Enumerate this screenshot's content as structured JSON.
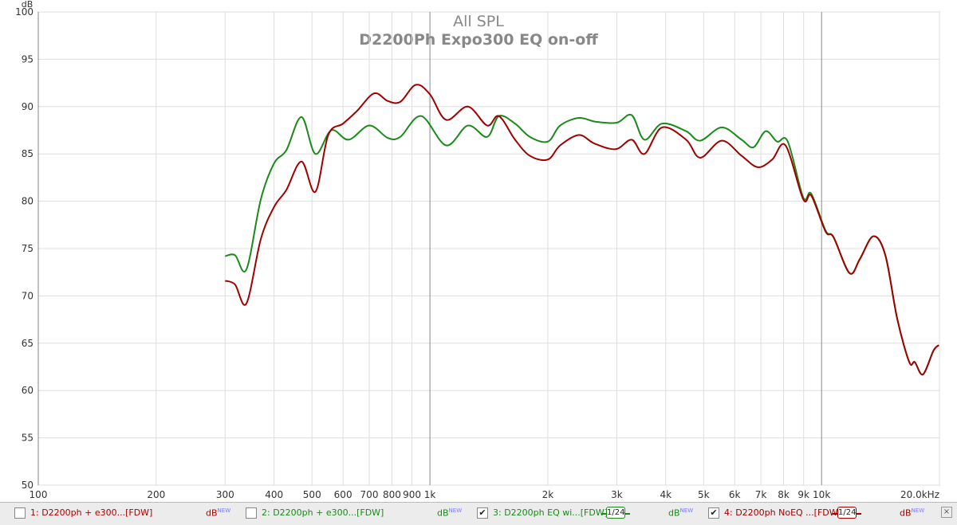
{
  "chart_data": {
    "type": "line",
    "title": "All SPL",
    "subtitle": "D2200Ph Expo300 EQ on-off",
    "y_label": "dB",
    "xscale": "log",
    "grid": true,
    "xlim": [
      100,
      20000
    ],
    "ylim": [
      50,
      100
    ],
    "yticks": [
      50,
      55,
      60,
      65,
      70,
      75,
      80,
      85,
      90,
      95,
      100
    ],
    "xticks": [
      100,
      200,
      300,
      400,
      500,
      600,
      700,
      800,
      900,
      {
        "value": 1000,
        "label": "1k"
      },
      {
        "value": 2000,
        "label": "2k"
      },
      {
        "value": 3000,
        "label": "3k"
      },
      {
        "value": 4000,
        "label": "4k"
      },
      {
        "value": 5000,
        "label": "5k"
      },
      {
        "value": 6000,
        "label": "6k"
      },
      {
        "value": 7000,
        "label": "7k"
      },
      {
        "value": 8000,
        "label": "8k"
      },
      {
        "value": 9000,
        "label": "9k"
      },
      {
        "value": 10000,
        "label": "10k"
      },
      {
        "value": 20000,
        "label": "20.0kHz"
      }
    ],
    "unit_label": "dB",
    "badge": "NEW",
    "inactive_entries": [
      {
        "name": "1: D2200ph + e300...[FDW]",
        "color": "#b00000"
      },
      {
        "name": "2: D2200ph + e300...[FDW]",
        "color": "#1a8a1a"
      }
    ],
    "series": [
      {
        "name": "3: D2200ph EQ wi...[FDW]",
        "color": "#1a8a1a",
        "smoothing": "1/24",
        "x": [
          300,
          318,
          340,
          370,
          400,
          430,
          470,
          510,
          560,
          620,
          700,
          780,
          840,
          950,
          1100,
          1250,
          1400,
          1500,
          1650,
          1800,
          2000,
          2150,
          2400,
          2650,
          3000,
          3275,
          3530,
          3915,
          4510,
          4900,
          5560,
          6250,
          6700,
          7200,
          7700,
          8200,
          8980,
          9410,
          10240,
          10730,
          11790,
          12530,
          13560,
          14550,
          15600,
          16750,
          17300,
          18150,
          19300,
          19920
        ],
        "values": [
          74.2,
          74.3,
          72.8,
          80.2,
          84,
          85.4,
          88.9,
          85,
          87.5,
          86.5,
          88,
          86.7,
          86.8,
          89,
          85.9,
          88,
          86.8,
          89,
          88.2,
          86.8,
          86.3,
          88,
          88.8,
          88.4,
          88.3,
          89.1,
          86.5,
          88.2,
          87.4,
          86.4,
          87.8,
          86.5,
          85.7,
          87.4,
          86.3,
          86.3,
          80.4,
          80.8,
          76.9,
          76.2,
          72.4,
          73.9,
          76.3,
          74.3,
          67.6,
          63,
          63,
          61.7,
          64.2,
          64.8
        ]
      },
      {
        "name": "4: D2200ph NoEQ ...[FDW]",
        "color": "#a00000",
        "smoothing": "1/24",
        "x": [
          300,
          318,
          340,
          370,
          400,
          430,
          470,
          510,
          550,
          600,
          650,
          720,
          780,
          840,
          920,
          1000,
          1100,
          1250,
          1400,
          1500,
          1650,
          1800,
          2000,
          2150,
          2400,
          2630,
          2980,
          3275,
          3530,
          3915,
          4510,
          4900,
          5560,
          6250,
          6870,
          7480,
          8090,
          8980,
          9410,
          10240,
          10730,
          11790,
          12530,
          13560,
          14550,
          15600,
          16750,
          17300,
          18150,
          19300,
          19920
        ],
        "values": [
          71.6,
          71.2,
          69.2,
          76,
          79.4,
          81.2,
          84.2,
          81,
          87,
          88.2,
          89.5,
          91.4,
          90.6,
          90.5,
          92.3,
          91.3,
          88.6,
          90,
          88,
          89,
          86.5,
          84.8,
          84.4,
          85.9,
          87,
          86.1,
          85.5,
          86.5,
          85,
          87.8,
          86.5,
          84.6,
          86.4,
          84.8,
          83.6,
          84.4,
          85.9,
          80.2,
          80.6,
          76.8,
          76.2,
          72.4,
          73.9,
          76.3,
          74.3,
          67.6,
          63,
          63,
          61.7,
          64.2,
          64.8
        ]
      }
    ]
  }
}
